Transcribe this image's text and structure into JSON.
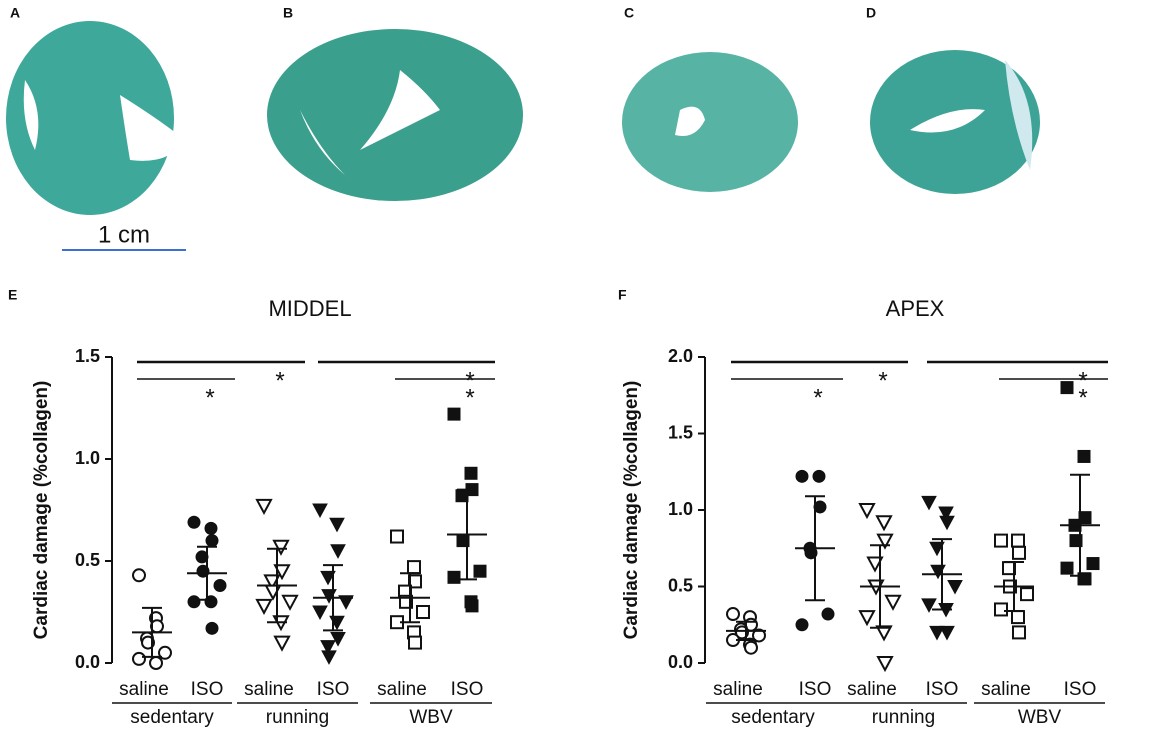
{
  "panels": [
    "A",
    "B",
    "C",
    "D"
  ],
  "scale_bar": "1 cm",
  "chart_data": [
    {
      "type": "dot",
      "panel": "E",
      "title": "MIDDEL",
      "ylabel": "Cardiac damage (%collagen)",
      "ylim": [
        0,
        1.5
      ],
      "yticks": [
        {
          "value": 0,
          "label": "0.0"
        },
        {
          "value": 0.5,
          "label": "0.5"
        },
        {
          "value": 1,
          "label": "1.0"
        },
        {
          "value": 1.5,
          "label": "1.5"
        }
      ],
      "groups": [
        "sedentary",
        "running",
        "WBV"
      ],
      "series": [
        {
          "name": "saline",
          "group": 0,
          "marker": "circle-open",
          "values": [
            0.43,
            0.22,
            0.18,
            0.12,
            0.1,
            0.05,
            0.02,
            0.0
          ],
          "mean": 0.15,
          "sd": 0.12
        },
        {
          "name": "ISO",
          "group": 0,
          "marker": "circle",
          "values": [
            0.69,
            0.66,
            0.6,
            0.52,
            0.45,
            0.38,
            0.3,
            0.3,
            0.17
          ],
          "mean": 0.44,
          "sd": 0.13
        },
        {
          "name": "saline",
          "group": 1,
          "marker": "triangle-open",
          "values": [
            0.77,
            0.57,
            0.45,
            0.4,
            0.35,
            0.3,
            0.28,
            0.2,
            0.1
          ],
          "mean": 0.38,
          "sd": 0.18
        },
        {
          "name": "ISO",
          "group": 1,
          "marker": "triangle",
          "values": [
            0.75,
            0.68,
            0.55,
            0.42,
            0.33,
            0.3,
            0.25,
            0.2,
            0.12,
            0.08,
            0.03
          ],
          "mean": 0.32,
          "sd": 0.16
        },
        {
          "name": "saline",
          "group": 2,
          "marker": "square-open",
          "values": [
            0.62,
            0.47,
            0.4,
            0.35,
            0.3,
            0.25,
            0.2,
            0.15,
            0.1
          ],
          "mean": 0.32,
          "sd": 0.12
        },
        {
          "name": "ISO",
          "group": 2,
          "marker": "square",
          "values": [
            1.22,
            0.93,
            0.85,
            0.82,
            0.6,
            0.45,
            0.42,
            0.3,
            0.28
          ],
          "mean": 0.63,
          "sd": 0.22
        }
      ],
      "comparisons": [
        {
          "pair": [
            0,
            1
          ],
          "label": "*"
        },
        {
          "pair": [
            0,
            2
          ],
          "label": "*"
        },
        {
          "pair": [
            3,
            5
          ],
          "label": "*"
        },
        {
          "pair": [
            4,
            5
          ],
          "label": "*"
        }
      ]
    },
    {
      "type": "dot",
      "panel": "F",
      "title": "APEX",
      "ylabel": "Cardiac damage (%collagen)",
      "ylim": [
        0,
        2
      ],
      "yticks": [
        {
          "value": 0,
          "label": "0.0"
        },
        {
          "value": 0.5,
          "label": "0.5"
        },
        {
          "value": 1,
          "label": "1.0"
        },
        {
          "value": 1.5,
          "label": "1.5"
        },
        {
          "value": 2,
          "label": "2.0"
        }
      ],
      "groups": [
        "sedentary",
        "running",
        "WBV"
      ],
      "series": [
        {
          "name": "saline",
          "group": 0,
          "marker": "circle-open",
          "values": [
            0.32,
            0.3,
            0.25,
            0.22,
            0.2,
            0.18,
            0.15,
            0.12,
            0.1
          ],
          "mean": 0.21,
          "sd": 0.06
        },
        {
          "name": "ISO",
          "group": 0,
          "marker": "circle",
          "values": [
            1.22,
            1.22,
            1.02,
            0.75,
            0.72,
            0.32,
            0.25
          ],
          "mean": 0.75,
          "sd": 0.34
        },
        {
          "name": "saline",
          "group": 1,
          "marker": "triangle-open",
          "values": [
            1.0,
            0.92,
            0.8,
            0.65,
            0.5,
            0.4,
            0.3,
            0.2,
            0.0
          ],
          "mean": 0.5,
          "sd": 0.27
        },
        {
          "name": "ISO",
          "group": 1,
          "marker": "triangle",
          "values": [
            1.05,
            0.98,
            0.92,
            0.75,
            0.6,
            0.5,
            0.38,
            0.35,
            0.2,
            0.2
          ],
          "mean": 0.58,
          "sd": 0.23
        },
        {
          "name": "saline",
          "group": 2,
          "marker": "square-open",
          "values": [
            0.8,
            0.8,
            0.72,
            0.62,
            0.5,
            0.45,
            0.35,
            0.3,
            0.2
          ],
          "mean": 0.5,
          "sd": 0.16
        },
        {
          "name": "ISO",
          "group": 2,
          "marker": "square",
          "values": [
            1.8,
            1.35,
            0.95,
            0.9,
            0.8,
            0.65,
            0.62,
            0.55,
            0.55
          ],
          "mean": 0.9,
          "sd": 0.33
        }
      ],
      "comparisons": [
        {
          "pair": [
            0,
            1
          ],
          "label": "*"
        },
        {
          "pair": [
            0,
            2
          ],
          "label": "*"
        },
        {
          "pair": [
            3,
            5
          ],
          "label": "*"
        },
        {
          "pair": [
            4,
            5
          ],
          "label": "*"
        }
      ]
    }
  ]
}
